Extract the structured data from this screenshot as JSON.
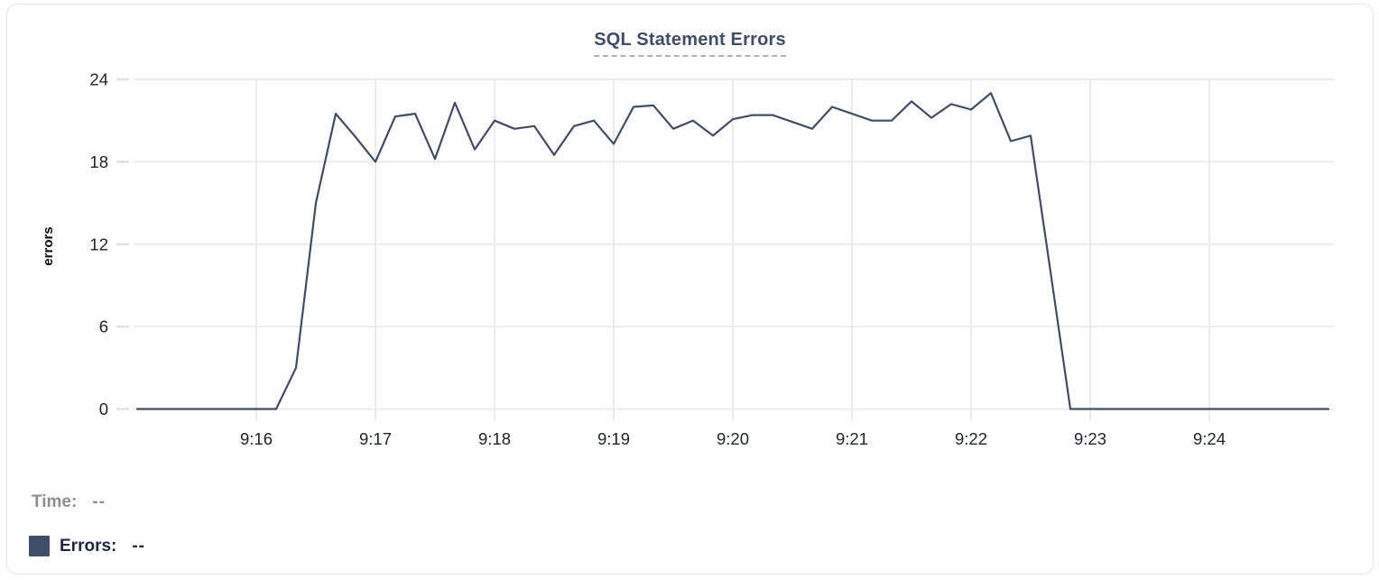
{
  "chart_data": {
    "type": "line",
    "title": "SQL Statement Errors",
    "ylabel": "errors",
    "xlabel": "",
    "ylim": [
      0,
      24
    ],
    "yticks": [
      0,
      6,
      12,
      18,
      24
    ],
    "xtick_labels": [
      "9:16",
      "9:17",
      "9:18",
      "9:19",
      "9:20",
      "9:21",
      "9:22",
      "9:23",
      "9:24"
    ],
    "x_range": [
      "9:15:00",
      "9:25:03"
    ],
    "grid": true,
    "legend_position": "bottom-left",
    "series": [
      {
        "name": "Errors",
        "color": "#3d4d6d",
        "points": [
          [
            "9:15:00",
            0
          ],
          [
            "9:15:10",
            0
          ],
          [
            "9:15:20",
            0
          ],
          [
            "9:15:30",
            0
          ],
          [
            "9:15:40",
            0
          ],
          [
            "9:15:50",
            0
          ],
          [
            "9:16:00",
            0
          ],
          [
            "9:16:10",
            0
          ],
          [
            "9:16:20",
            3
          ],
          [
            "9:16:30",
            15
          ],
          [
            "9:16:40",
            21.5
          ],
          [
            "9:16:50",
            19.8
          ],
          [
            "9:17:00",
            18
          ],
          [
            "9:17:10",
            21.3
          ],
          [
            "9:17:20",
            21.5
          ],
          [
            "9:17:30",
            18.2
          ],
          [
            "9:17:40",
            22.3
          ],
          [
            "9:17:50",
            18.9
          ],
          [
            "9:18:00",
            21
          ],
          [
            "9:18:10",
            20.4
          ],
          [
            "9:18:20",
            20.6
          ],
          [
            "9:18:30",
            18.5
          ],
          [
            "9:18:40",
            20.6
          ],
          [
            "9:18:50",
            21
          ],
          [
            "9:19:00",
            19.3
          ],
          [
            "9:19:10",
            22
          ],
          [
            "9:19:20",
            22.1
          ],
          [
            "9:19:30",
            20.4
          ],
          [
            "9:19:40",
            21
          ],
          [
            "9:19:50",
            19.9
          ],
          [
            "9:20:00",
            21.1
          ],
          [
            "9:20:10",
            21.4
          ],
          [
            "9:20:20",
            21.4
          ],
          [
            "9:20:30",
            20.9
          ],
          [
            "9:20:40",
            20.4
          ],
          [
            "9:20:50",
            22
          ],
          [
            "9:21:00",
            21.5
          ],
          [
            "9:21:10",
            21
          ],
          [
            "9:21:20",
            21
          ],
          [
            "9:21:30",
            22.4
          ],
          [
            "9:21:40",
            21.2
          ],
          [
            "9:21:50",
            22.2
          ],
          [
            "9:22:00",
            21.8
          ],
          [
            "9:22:10",
            23
          ],
          [
            "9:22:20",
            19.5
          ],
          [
            "9:22:30",
            19.9
          ],
          [
            "9:22:40",
            10
          ],
          [
            "9:22:50",
            0
          ],
          [
            "9:23:00",
            0
          ],
          [
            "9:23:10",
            0
          ],
          [
            "9:23:20",
            0
          ],
          [
            "9:23:30",
            0
          ],
          [
            "9:23:40",
            0
          ],
          [
            "9:23:50",
            0
          ],
          [
            "9:24:00",
            0
          ],
          [
            "9:24:10",
            0
          ],
          [
            "9:24:20",
            0
          ],
          [
            "9:24:30",
            0
          ],
          [
            "9:24:40",
            0
          ],
          [
            "9:24:50",
            0
          ],
          [
            "9:25:00",
            0
          ]
        ]
      }
    ]
  },
  "tooltip": {
    "time_label": "Time:",
    "time_value": "--",
    "errors_label": "Errors:",
    "errors_value": "--"
  },
  "colors": {
    "line": "#3d4d6d",
    "title": "#3c4e6e",
    "title_underline": "#a9b2c4",
    "grid": "#ebebeb",
    "tick_mark": "#e0e0e0",
    "tick_text": "#212429",
    "time_label": "#8b8e94",
    "errors_label": "#1d2749",
    "swatch": "#3f4e6b",
    "card_border": "#e4e5e8",
    "background": "#ffffff"
  }
}
